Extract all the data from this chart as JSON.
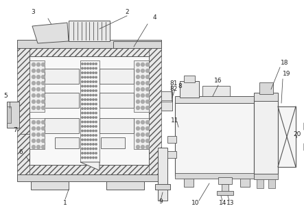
{
  "bg_color": "#ffffff",
  "line_color": "#555555",
  "label_color": "#222222",
  "figsize": [
    4.43,
    3.13
  ],
  "dpi": 100
}
